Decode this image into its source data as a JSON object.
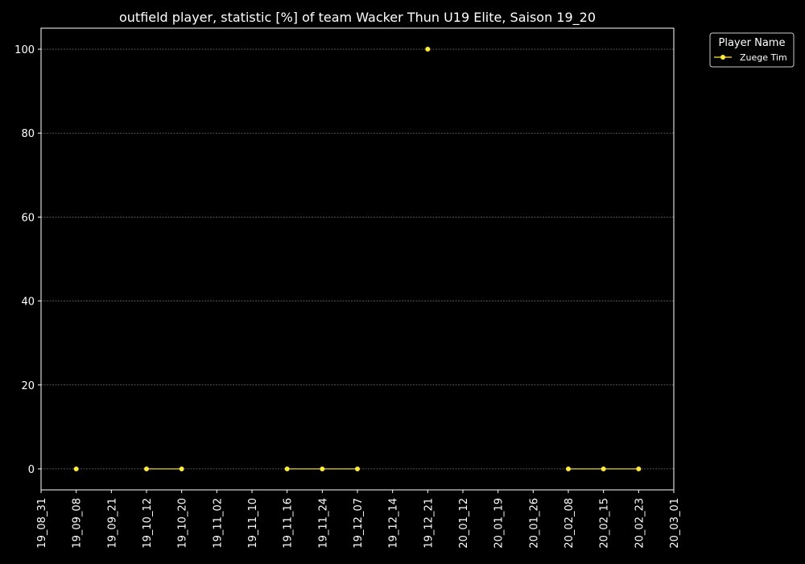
{
  "chart_data": {
    "type": "line",
    "title": "outfield player, statistic [%] of team Wacker Thun U19 Elite, Saison 19_20",
    "xlabel": "",
    "ylabel": "",
    "x_ticks": [
      "19_08_31",
      "19_09_08",
      "19_09_21",
      "19_10_12",
      "19_10_20",
      "19_11_02",
      "19_11_10",
      "19_11_16",
      "19_11_24",
      "19_12_07",
      "19_12_14",
      "19_12_21",
      "20_01_12",
      "20_01_19",
      "20_01_26",
      "20_02_08",
      "20_02_15",
      "20_02_23",
      "20_03_01"
    ],
    "y_ticks": [
      0,
      20,
      40,
      60,
      80,
      100
    ],
    "ylim": [
      -5,
      105
    ],
    "grid": true,
    "legend": {
      "title": "Player Name",
      "placement": "outside-top-right"
    },
    "series": [
      {
        "name": "Zuege Tim",
        "color": "#ffeb3b",
        "points": [
          {
            "x": "19_09_08",
            "y": 0
          },
          {
            "x": "19_10_12",
            "y": 0
          },
          {
            "x": "19_10_20",
            "y": 0
          },
          {
            "x": "19_11_16",
            "y": 0
          },
          {
            "x": "19_11_24",
            "y": 0
          },
          {
            "x": "19_12_07",
            "y": 0
          },
          {
            "x": "19_12_21",
            "y": 100
          },
          {
            "x": "20_02_08",
            "y": 0
          },
          {
            "x": "20_02_15",
            "y": 0
          },
          {
            "x": "20_02_23",
            "y": 0
          }
        ],
        "segments": [
          [
            "19_09_08"
          ],
          [
            "19_10_12",
            "19_10_20"
          ],
          [
            "19_11_16",
            "19_11_24",
            "19_12_07"
          ],
          [
            "19_12_21"
          ],
          [
            "20_02_08",
            "20_02_15",
            "20_02_23"
          ]
        ]
      }
    ]
  }
}
